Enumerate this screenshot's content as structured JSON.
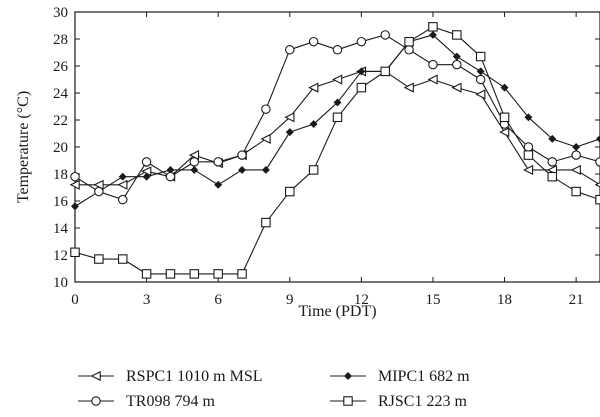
{
  "chart_data": {
    "type": "line",
    "xlabel": "Time (PDT)",
    "ylabel": "Temperature (°C)",
    "xlim": [
      0,
      22
    ],
    "ylim": [
      10,
      30
    ],
    "xticks": [
      0,
      3,
      6,
      9,
      12,
      15,
      18,
      21
    ],
    "yticks": [
      10,
      12,
      14,
      16,
      18,
      20,
      22,
      24,
      26,
      28,
      30
    ],
    "grid": false,
    "legend_position": "bottom",
    "line_color": "#1a1a1a",
    "series": [
      {
        "name": "RSPC1 1010 m MSL",
        "marker": "triangle-left",
        "x": [
          0,
          1,
          2,
          3,
          4,
          5,
          6,
          7,
          8,
          9,
          10,
          11,
          12,
          13,
          14,
          15,
          16,
          17,
          18,
          19,
          20,
          21,
          22
        ],
        "values": [
          17.2,
          17.2,
          17.2,
          18.2,
          17.8,
          19.4,
          18.8,
          19.4,
          20.6,
          22.2,
          24.4,
          25.0,
          25.6,
          25.6,
          24.4,
          25.0,
          24.4,
          23.9,
          21.1,
          18.3,
          18.3,
          18.3,
          17.2
        ]
      },
      {
        "name": "MIPC1 682 m",
        "marker": "diamond",
        "x": [
          0,
          1,
          2,
          3,
          4,
          5,
          6,
          7,
          8,
          9,
          10,
          11,
          12,
          13,
          14,
          15,
          16,
          17,
          18,
          19,
          20,
          21,
          22
        ],
        "values": [
          15.6,
          16.7,
          17.8,
          17.8,
          18.3,
          18.3,
          17.2,
          18.3,
          18.3,
          21.1,
          21.7,
          23.3,
          25.6,
          25.6,
          27.8,
          28.3,
          26.7,
          25.6,
          24.4,
          22.2,
          20.6,
          20.0,
          20.6
        ]
      },
      {
        "name": "TR098 794 m",
        "marker": "circle",
        "x": [
          0,
          1,
          2,
          3,
          4,
          5,
          6,
          7,
          8,
          9,
          10,
          11,
          12,
          13,
          14,
          15,
          16,
          17,
          18,
          19,
          20,
          21,
          22
        ],
        "values": [
          17.8,
          16.7,
          16.1,
          18.9,
          17.8,
          18.9,
          18.9,
          19.4,
          22.8,
          27.2,
          27.8,
          27.2,
          27.8,
          28.3,
          27.2,
          26.1,
          26.1,
          25.0,
          21.7,
          20.0,
          18.9,
          19.4,
          18.9
        ]
      },
      {
        "name": "RJSC1 223 m",
        "marker": "square",
        "x": [
          0,
          1,
          2,
          3,
          4,
          5,
          6,
          7,
          8,
          9,
          10,
          11,
          12,
          13,
          14,
          15,
          16,
          17,
          18,
          19,
          20,
          21,
          22
        ],
        "values": [
          12.2,
          11.7,
          11.7,
          10.6,
          10.6,
          10.6,
          10.6,
          10.6,
          14.4,
          16.7,
          18.3,
          22.2,
          24.4,
          25.6,
          27.8,
          28.9,
          28.3,
          26.7,
          22.2,
          19.4,
          17.8,
          16.7,
          16.1
        ]
      }
    ]
  }
}
